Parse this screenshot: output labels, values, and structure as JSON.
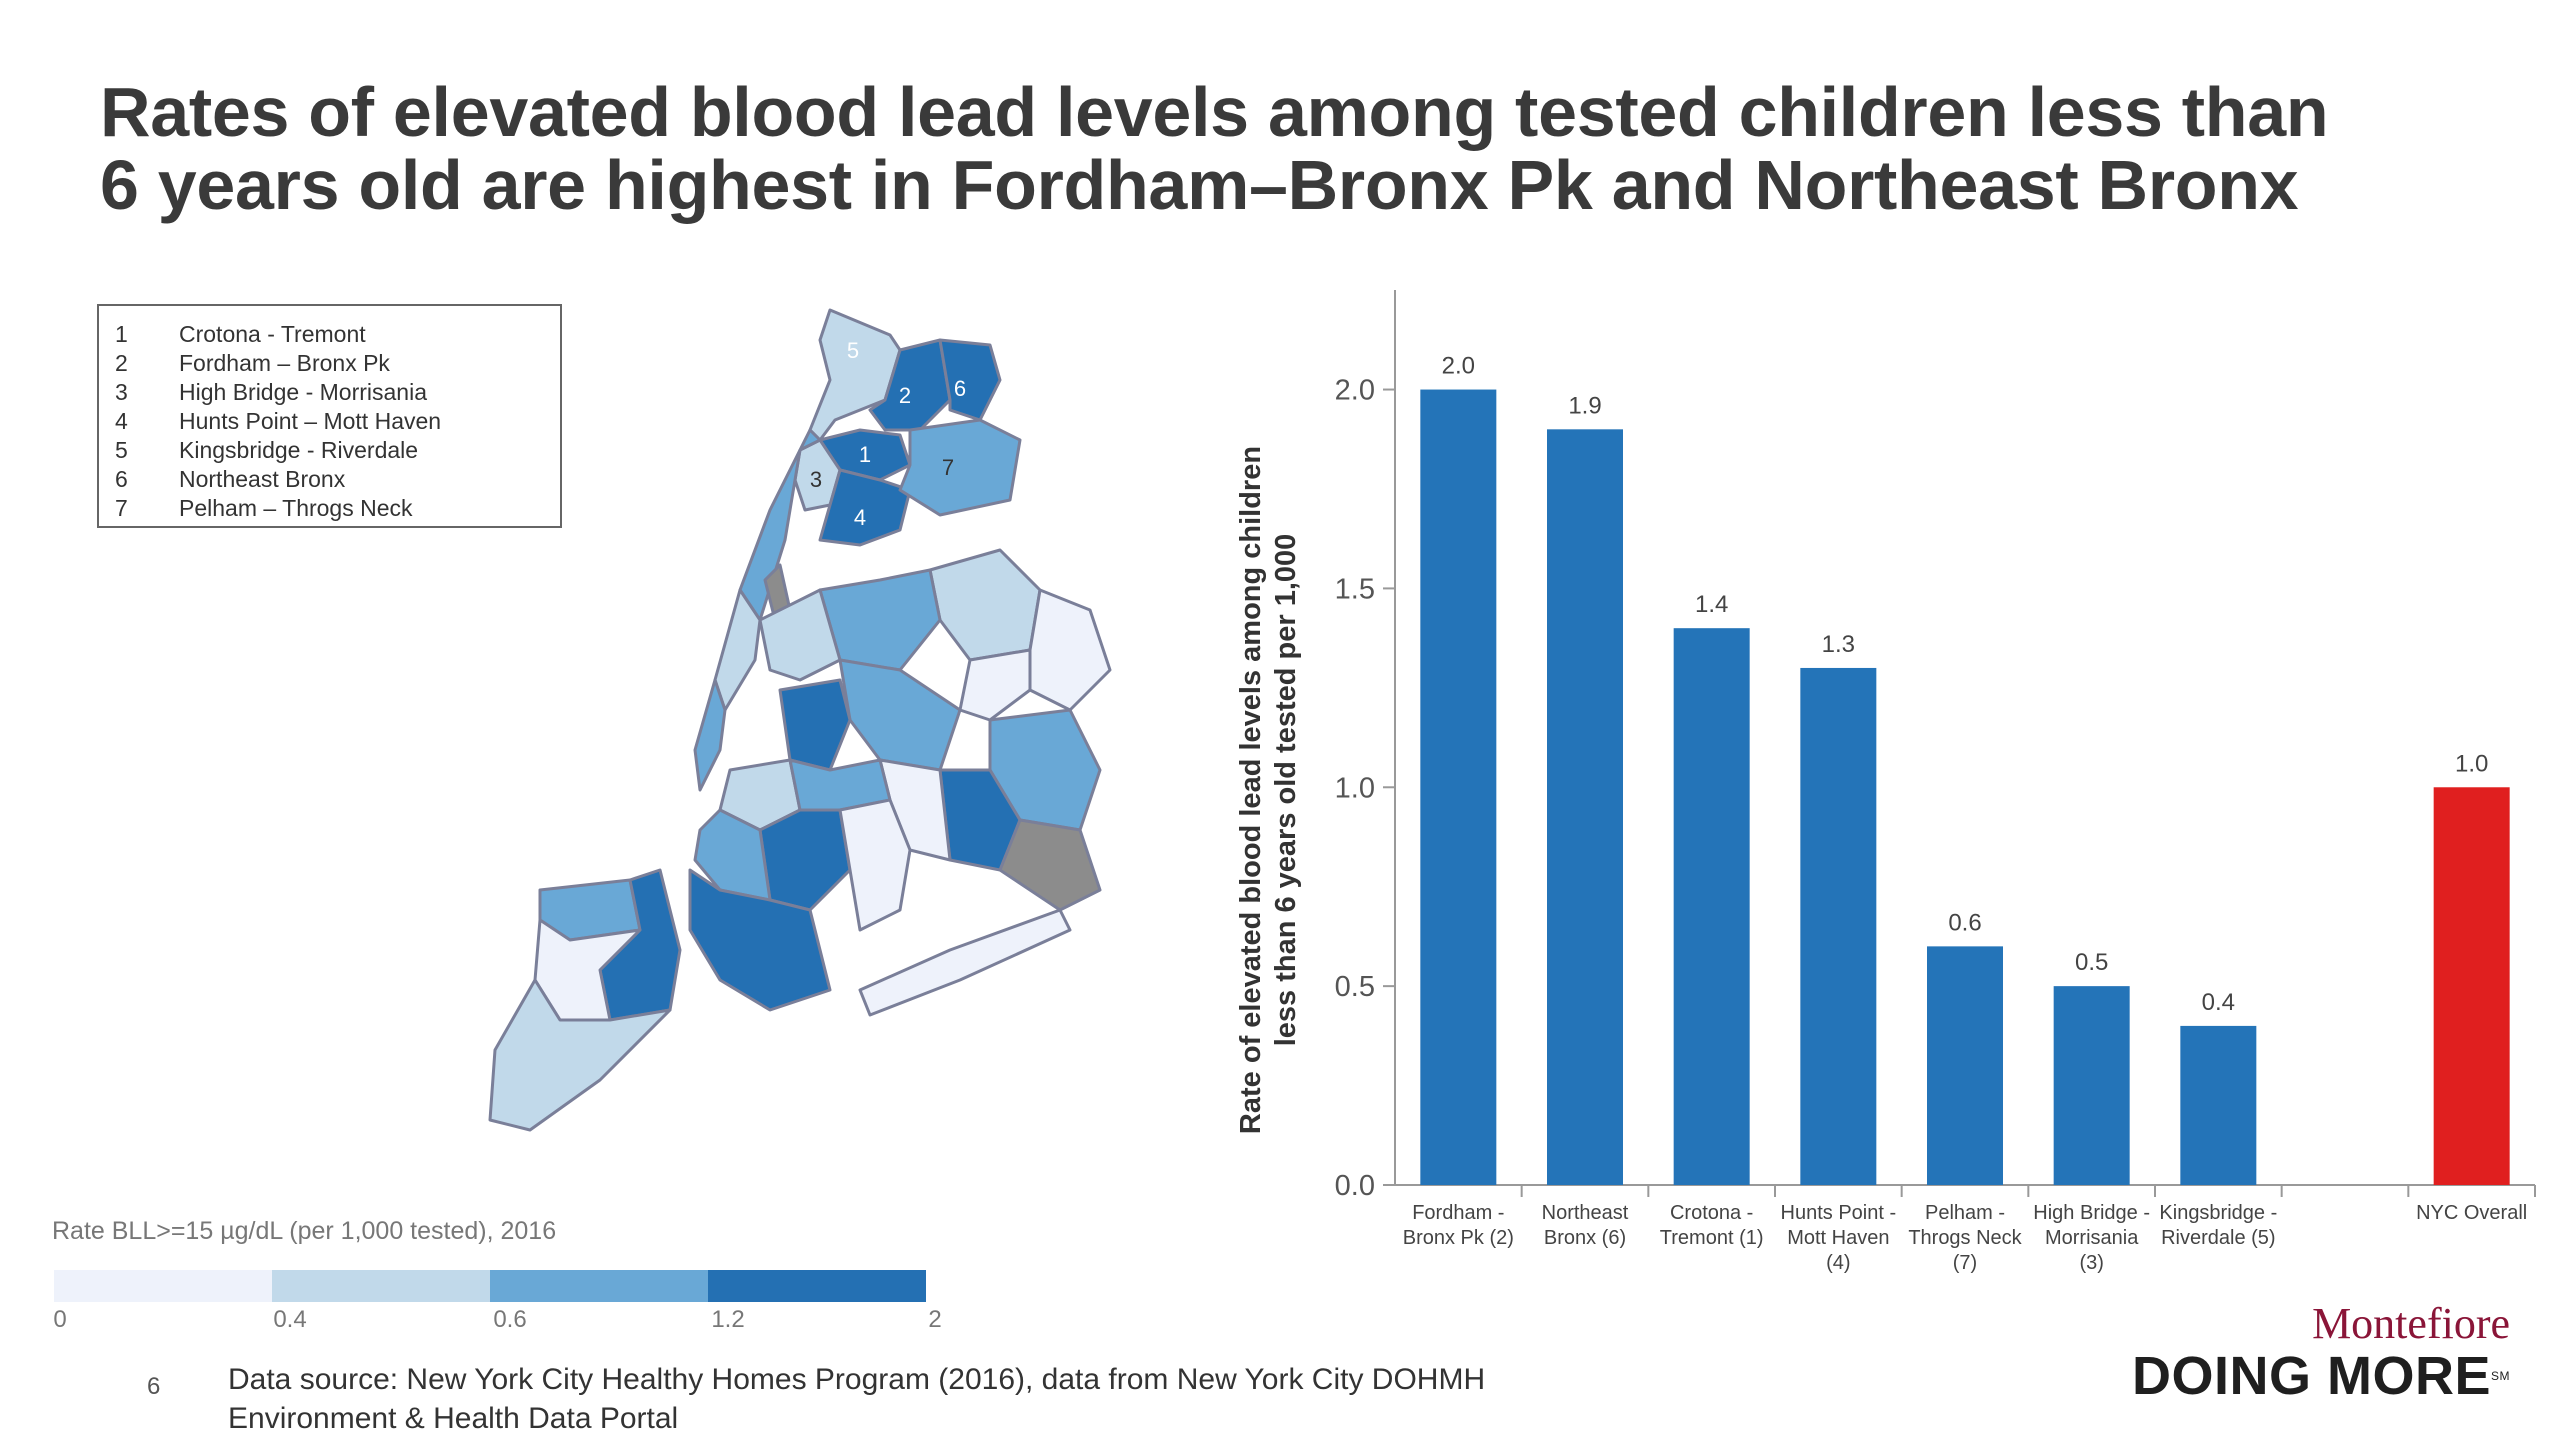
{
  "slide": {
    "title_line1": "Rates of elevated blood lead levels among tested children less than",
    "title_line2": "6 years old are highest in Fordham–Bronx Pk and Northeast Bronx",
    "page_number": "6",
    "source_line1": "Data source: New York City Healthy Homes Program (2016), data from New York City DOHMH",
    "source_line2": "Environment & Health Data Portal",
    "logo_name": "Montefiore",
    "logo_tagline": "DOING MORE",
    "logo_mark": "SM"
  },
  "map": {
    "legend_items": [
      {
        "num": "1",
        "label": "Crotona - Tremont"
      },
      {
        "num": "2",
        "label": "Fordham – Bronx Pk"
      },
      {
        "num": "3",
        "label": "High Bridge - Morrisania"
      },
      {
        "num": "4",
        "label": "Hunts Point – Mott Haven"
      },
      {
        "num": "5",
        "label": "Kingsbridge - Riverdale"
      },
      {
        "num": "6",
        "label": "Northeast Bronx"
      },
      {
        "num": "7",
        "label": "Pelham – Throgs Neck"
      }
    ],
    "scale_title": "Rate BLL>=15 µg/dL (per 1,000 tested), 2016",
    "scale_ticks": [
      "0",
      "0.4",
      "0.6",
      "1.2",
      "2"
    ],
    "scale_colors": [
      "#eef2fb",
      "#c1d9ea",
      "#69a8d6",
      "#2470b3"
    ],
    "nodata_color": "#8c8c8c",
    "labels": [
      "1",
      "2",
      "3",
      "4",
      "5",
      "6",
      "7"
    ]
  },
  "chart_data": {
    "type": "bar",
    "title": "",
    "xlabel": "",
    "ylabel_line1": "Rate of elevated blood lead levels among children",
    "ylabel_line2": "less than 6 years old tested per 1,000",
    "ylim": [
      0,
      2.2
    ],
    "yticks": [
      "0.0",
      "0.5",
      "1.0",
      "1.5",
      "2.0"
    ],
    "grid": false,
    "bars": [
      {
        "label": [
          "Fordham -",
          "Bronx Pk (2)"
        ],
        "value": 2.0,
        "value_label": "2.0",
        "color": "#2474b8"
      },
      {
        "label": [
          "Northeast",
          "Bronx (6)"
        ],
        "value": 1.9,
        "value_label": "1.9",
        "color": "#2474b8"
      },
      {
        "label": [
          "Crotona -",
          "Tremont (1)"
        ],
        "value": 1.4,
        "value_label": "1.4",
        "color": "#2474b8"
      },
      {
        "label": [
          "Hunts Point -",
          "Mott Haven",
          "(4)"
        ],
        "value": 1.3,
        "value_label": "1.3",
        "color": "#2474b8"
      },
      {
        "label": [
          "Pelham -",
          "Throgs Neck",
          "(7)"
        ],
        "value": 0.6,
        "value_label": "0.6",
        "color": "#2474b8"
      },
      {
        "label": [
          "High Bridge -",
          "Morrisania",
          "(3)"
        ],
        "value": 0.5,
        "value_label": "0.5",
        "color": "#2474b8"
      },
      {
        "label": [
          "Kingsbridge -",
          "Riverdale (5)"
        ],
        "value": 0.4,
        "value_label": "0.4",
        "color": "#2474b8"
      },
      {
        "label": [
          ""
        ],
        "value": null,
        "value_label": "",
        "color": "#2474b8"
      },
      {
        "label": [
          "NYC Overall"
        ],
        "value": 1.0,
        "value_label": "1.0",
        "color": "#e01f1f"
      }
    ]
  }
}
